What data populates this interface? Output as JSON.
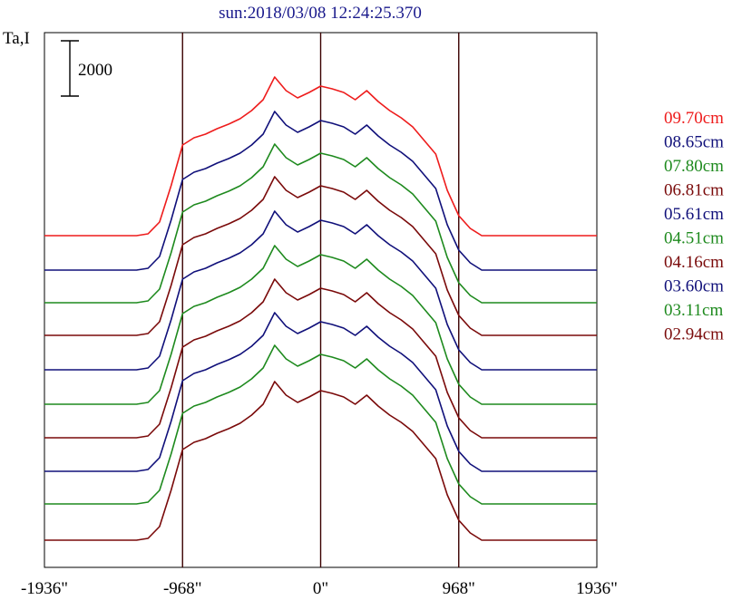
{
  "chart_data": {
    "type": "line",
    "title": "sun:2018/03/08 12:24:25.370",
    "ylabel": "Ta,I",
    "scale_bar_label": "2000",
    "xlim": [
      -1936,
      1936
    ],
    "x_ticks": [
      -1936,
      -968,
      0,
      968,
      1936
    ],
    "x_tick_labels": [
      "-1936\"",
      "-968\"",
      "0\"",
      "968\"",
      "1936\""
    ],
    "vertical_lines_at": [
      -968,
      0,
      968
    ],
    "grid": false,
    "legend_position": "right",
    "series": [
      {
        "name": "09.70cm",
        "color": "#ee1c1c",
        "baseline": 260,
        "levels": [
          0,
          0,
          0,
          0,
          0,
          0,
          0,
          0,
          0,
          2,
          15,
          55,
          100,
          108,
          112,
          118,
          123,
          129,
          138,
          150,
          175,
          160,
          152,
          158,
          165,
          162,
          158,
          150,
          160,
          148,
          138,
          130,
          120,
          105,
          90,
          50,
          22,
          8,
          0,
          0,
          0,
          0,
          0,
          0,
          0,
          0,
          0,
          0,
          0
        ]
      },
      {
        "name": "08.65cm",
        "color": "#10107a",
        "baseline": 298,
        "levels": [
          0,
          0,
          0,
          0,
          0,
          0,
          0,
          0,
          0,
          2,
          15,
          55,
          100,
          108,
          112,
          118,
          123,
          129,
          138,
          150,
          175,
          160,
          152,
          158,
          165,
          162,
          158,
          150,
          160,
          148,
          138,
          130,
          120,
          105,
          90,
          50,
          22,
          8,
          0,
          0,
          0,
          0,
          0,
          0,
          0,
          0,
          0,
          0,
          0
        ]
      },
      {
        "name": "07.80cm",
        "color": "#1e8a1e",
        "baseline": 334,
        "levels": [
          0,
          0,
          0,
          0,
          0,
          0,
          0,
          0,
          0,
          2,
          15,
          55,
          100,
          108,
          112,
          118,
          123,
          129,
          138,
          150,
          175,
          160,
          152,
          158,
          165,
          162,
          158,
          150,
          160,
          148,
          138,
          130,
          120,
          105,
          90,
          50,
          22,
          8,
          0,
          0,
          0,
          0,
          0,
          0,
          0,
          0,
          0,
          0,
          0
        ]
      },
      {
        "name": "06.81cm",
        "color": "#7a0a0a",
        "baseline": 370,
        "levels": [
          0,
          0,
          0,
          0,
          0,
          0,
          0,
          0,
          0,
          2,
          15,
          55,
          100,
          108,
          112,
          118,
          123,
          129,
          138,
          150,
          175,
          160,
          152,
          158,
          165,
          162,
          158,
          150,
          160,
          148,
          138,
          130,
          120,
          105,
          90,
          50,
          22,
          8,
          0,
          0,
          0,
          0,
          0,
          0,
          0,
          0,
          0,
          0,
          0
        ]
      },
      {
        "name": "05.61cm",
        "color": "#10107a",
        "baseline": 408,
        "levels": [
          0,
          0,
          0,
          0,
          0,
          0,
          0,
          0,
          0,
          2,
          15,
          55,
          100,
          108,
          112,
          118,
          123,
          129,
          138,
          150,
          175,
          160,
          152,
          158,
          165,
          162,
          158,
          150,
          160,
          148,
          138,
          130,
          120,
          105,
          90,
          50,
          22,
          8,
          0,
          0,
          0,
          0,
          0,
          0,
          0,
          0,
          0,
          0,
          0
        ]
      },
      {
        "name": "04.51cm",
        "color": "#1e8a1e",
        "baseline": 446,
        "levels": [
          0,
          0,
          0,
          0,
          0,
          0,
          0,
          0,
          0,
          2,
          15,
          55,
          100,
          108,
          112,
          118,
          123,
          129,
          138,
          150,
          175,
          160,
          152,
          158,
          165,
          162,
          158,
          150,
          160,
          148,
          138,
          130,
          120,
          105,
          90,
          50,
          22,
          8,
          0,
          0,
          0,
          0,
          0,
          0,
          0,
          0,
          0,
          0,
          0
        ]
      },
      {
        "name": "04.16cm",
        "color": "#7a0a0a",
        "baseline": 483,
        "levels": [
          0,
          0,
          0,
          0,
          0,
          0,
          0,
          0,
          0,
          2,
          15,
          55,
          100,
          108,
          112,
          118,
          123,
          129,
          138,
          150,
          175,
          160,
          152,
          158,
          165,
          162,
          158,
          150,
          160,
          148,
          138,
          130,
          120,
          105,
          90,
          50,
          22,
          8,
          0,
          0,
          0,
          0,
          0,
          0,
          0,
          0,
          0,
          0,
          0
        ]
      },
      {
        "name": "03.60cm",
        "color": "#10107a",
        "baseline": 520,
        "levels": [
          0,
          0,
          0,
          0,
          0,
          0,
          0,
          0,
          0,
          2,
          15,
          55,
          100,
          108,
          112,
          118,
          123,
          129,
          138,
          150,
          175,
          160,
          152,
          158,
          165,
          162,
          158,
          150,
          160,
          148,
          138,
          130,
          120,
          105,
          90,
          50,
          22,
          8,
          0,
          0,
          0,
          0,
          0,
          0,
          0,
          0,
          0,
          0,
          0
        ]
      },
      {
        "name": "03.11cm",
        "color": "#1e8a1e",
        "baseline": 556,
        "levels": [
          0,
          0,
          0,
          0,
          0,
          0,
          0,
          0,
          0,
          2,
          15,
          55,
          100,
          108,
          112,
          118,
          123,
          129,
          138,
          150,
          175,
          160,
          152,
          158,
          165,
          162,
          158,
          150,
          160,
          148,
          138,
          130,
          120,
          105,
          90,
          50,
          22,
          8,
          0,
          0,
          0,
          0,
          0,
          0,
          0,
          0,
          0,
          0,
          0
        ]
      },
      {
        "name": "02.94cm",
        "color": "#7a0a0a",
        "baseline": 596,
        "levels": [
          0,
          0,
          0,
          0,
          0,
          0,
          0,
          0,
          0,
          2,
          15,
          55,
          100,
          108,
          112,
          118,
          123,
          129,
          138,
          150,
          175,
          160,
          152,
          158,
          165,
          162,
          158,
          150,
          160,
          148,
          138,
          130,
          120,
          105,
          90,
          50,
          22,
          8,
          0,
          0,
          0,
          0,
          0,
          0,
          0,
          0,
          0,
          0,
          0
        ]
      }
    ]
  }
}
